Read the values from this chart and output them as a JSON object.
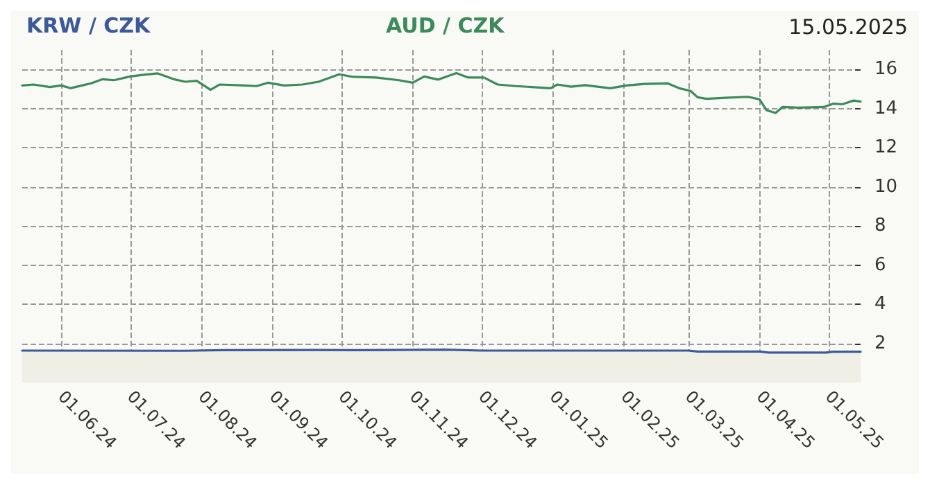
{
  "chart_data": {
    "type": "line",
    "annotations": [
      "15.05.2025"
    ],
    "legend": "top",
    "grid": true,
    "marker": "none",
    "line_style": "solid",
    "xlim": [
      "2024-05-15",
      "2025-05-15"
    ],
    "xticks": [
      {
        "value": "2024-06-01",
        "label": "01.06.24"
      },
      {
        "value": "2024-07-01",
        "label": "01.07.24"
      },
      {
        "value": "2024-08-01",
        "label": "01.08.24"
      },
      {
        "value": "2024-09-01",
        "label": "01.09.24"
      },
      {
        "value": "2024-10-01",
        "label": "01.10.24"
      },
      {
        "value": "2024-11-01",
        "label": "01.11.24"
      },
      {
        "value": "2024-12-01",
        "label": "01.12.24"
      },
      {
        "value": "2025-01-01",
        "label": "01.01.25"
      },
      {
        "value": "2025-02-01",
        "label": "01.02.25"
      },
      {
        "value": "2025-03-01",
        "label": "01.03.25"
      },
      {
        "value": "2025-04-01",
        "label": "01.04.25"
      },
      {
        "value": "2025-05-01",
        "label": "01.05.25"
      }
    ],
    "ylim": [
      0,
      17
    ],
    "yticks": [
      2,
      4,
      6,
      8,
      10,
      12,
      14,
      16
    ],
    "series": [
      {
        "name": "KRW / CZK",
        "type": "area",
        "color": "#3c5a99",
        "x": [
          "2024-05-15",
          "2024-07-25",
          "2024-08-10",
          "2024-09-20",
          "2024-10-10",
          "2024-11-15",
          "2024-12-01",
          "2025-03-01",
          "2025-03-05",
          "2025-04-01",
          "2025-04-05",
          "2025-04-30",
          "2025-05-03",
          "2025-05-15"
        ],
        "values": [
          1.63,
          1.62,
          1.65,
          1.66,
          1.65,
          1.68,
          1.63,
          1.63,
          1.58,
          1.58,
          1.53,
          1.53,
          1.57,
          1.57
        ]
      },
      {
        "name": "AUD / CZK",
        "color": "#3d8a5a",
        "x": [
          "2024-05-15",
          "2024-05-20",
          "2024-05-27",
          "2024-06-01",
          "2024-06-05",
          "2024-06-10",
          "2024-06-14",
          "2024-06-19",
          "2024-06-24",
          "2024-07-01",
          "2024-07-07",
          "2024-07-13",
          "2024-07-20",
          "2024-07-25",
          "2024-07-30",
          "2024-08-05",
          "2024-08-09",
          "2024-08-20",
          "2024-08-25",
          "2024-08-30",
          "2024-09-06",
          "2024-09-14",
          "2024-09-21",
          "2024-09-30",
          "2024-10-06",
          "2024-10-16",
          "2024-10-26",
          "2024-11-01",
          "2024-11-06",
          "2024-11-12",
          "2024-11-20",
          "2024-11-25",
          "2024-12-02",
          "2024-12-08",
          "2024-12-16",
          "2024-12-31",
          "2025-01-03",
          "2025-01-09",
          "2025-01-15",
          "2025-01-26",
          "2025-02-02",
          "2025-02-10",
          "2025-02-20",
          "2025-02-25",
          "2025-03-02",
          "2025-03-05",
          "2025-03-09",
          "2025-03-17",
          "2025-03-27",
          "2025-04-01",
          "2025-04-04",
          "2025-04-08",
          "2025-04-11",
          "2025-04-18",
          "2025-04-29",
          "2025-05-03",
          "2025-05-07",
          "2025-05-12",
          "2025-05-15"
        ],
        "values": [
          15.18,
          15.23,
          15.1,
          15.18,
          15.04,
          15.18,
          15.29,
          15.5,
          15.45,
          15.64,
          15.73,
          15.8,
          15.5,
          15.37,
          15.42,
          14.96,
          15.23,
          15.18,
          15.15,
          15.32,
          15.18,
          15.23,
          15.37,
          15.75,
          15.62,
          15.59,
          15.45,
          15.32,
          15.64,
          15.48,
          15.81,
          15.59,
          15.59,
          15.23,
          15.15,
          15.04,
          15.23,
          15.12,
          15.2,
          15.04,
          15.18,
          15.26,
          15.29,
          15.04,
          14.9,
          14.58,
          14.5,
          14.55,
          14.6,
          14.47,
          13.92,
          13.78,
          14.08,
          14.05,
          14.08,
          14.25,
          14.22,
          14.41,
          14.36
        ]
      }
    ]
  }
}
